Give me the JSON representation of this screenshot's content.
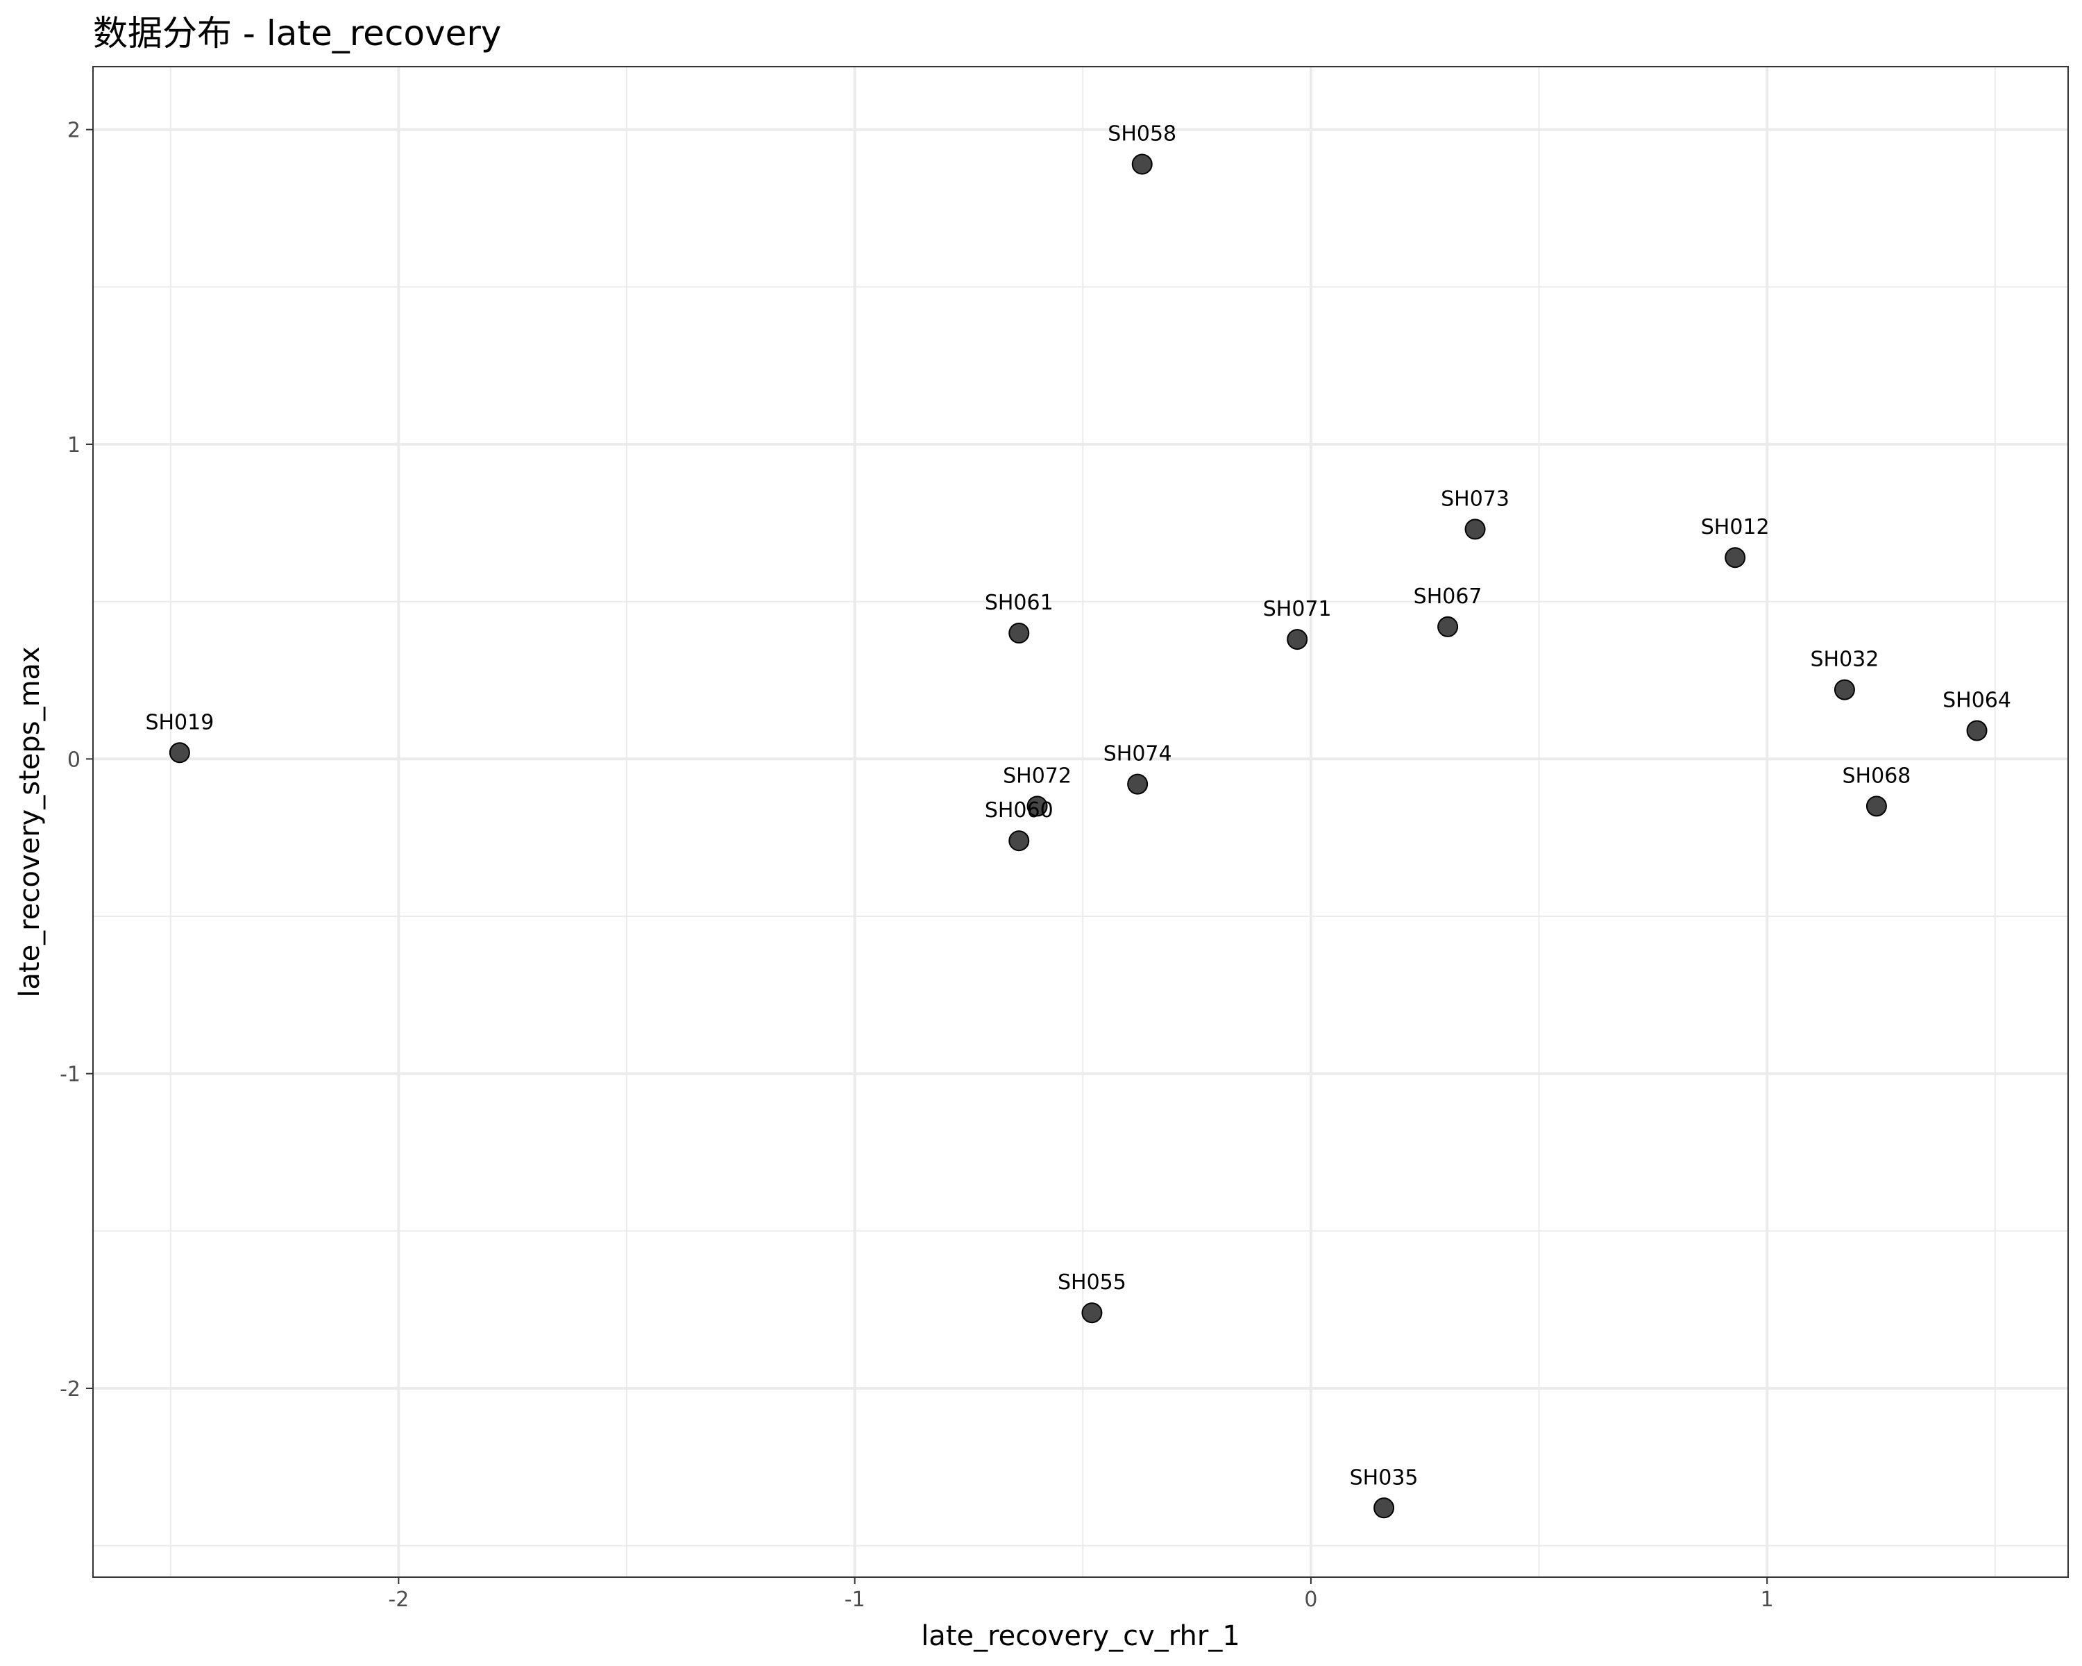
{
  "chart_data": {
    "type": "scatter",
    "title": "数据分布 - late_recovery",
    "xlabel": "late_recovery_cv_rhr_1",
    "ylabel": "late_recovery_steps_max",
    "xlim": [
      -2.67,
      1.66
    ],
    "ylim": [
      -2.6,
      2.2
    ],
    "x_ticks": [
      -2,
      -1,
      0,
      1
    ],
    "y_ticks": [
      -2,
      -1,
      0,
      1,
      2
    ],
    "x_tick_labels": [
      "-2",
      "-1",
      "0",
      "1"
    ],
    "y_tick_labels": [
      "-2",
      "-1",
      "0",
      "1",
      "2"
    ],
    "grid": true,
    "legend": "none",
    "marker_color": "#333333",
    "points": [
      {
        "label": "SH058",
        "x": -0.37,
        "y": 1.89
      },
      {
        "label": "SH073",
        "x": 0.36,
        "y": 0.73
      },
      {
        "label": "SH012",
        "x": 0.93,
        "y": 0.64
      },
      {
        "label": "SH061",
        "x": -0.64,
        "y": 0.4
      },
      {
        "label": "SH071",
        "x": -0.03,
        "y": 0.38
      },
      {
        "label": "SH067",
        "x": 0.3,
        "y": 0.42
      },
      {
        "label": "SH032",
        "x": 1.17,
        "y": 0.22
      },
      {
        "label": "SH064",
        "x": 1.46,
        "y": 0.09
      },
      {
        "label": "SH019",
        "x": -2.48,
        "y": 0.02
      },
      {
        "label": "SH074",
        "x": -0.38,
        "y": -0.08
      },
      {
        "label": "SH072",
        "x": -0.6,
        "y": -0.15
      },
      {
        "label": "SH068",
        "x": 1.24,
        "y": -0.15
      },
      {
        "label": "SH060",
        "x": -0.64,
        "y": -0.26
      },
      {
        "label": "SH055",
        "x": -0.48,
        "y": -1.76
      },
      {
        "label": "SH035",
        "x": 0.16,
        "y": -2.38
      }
    ]
  }
}
